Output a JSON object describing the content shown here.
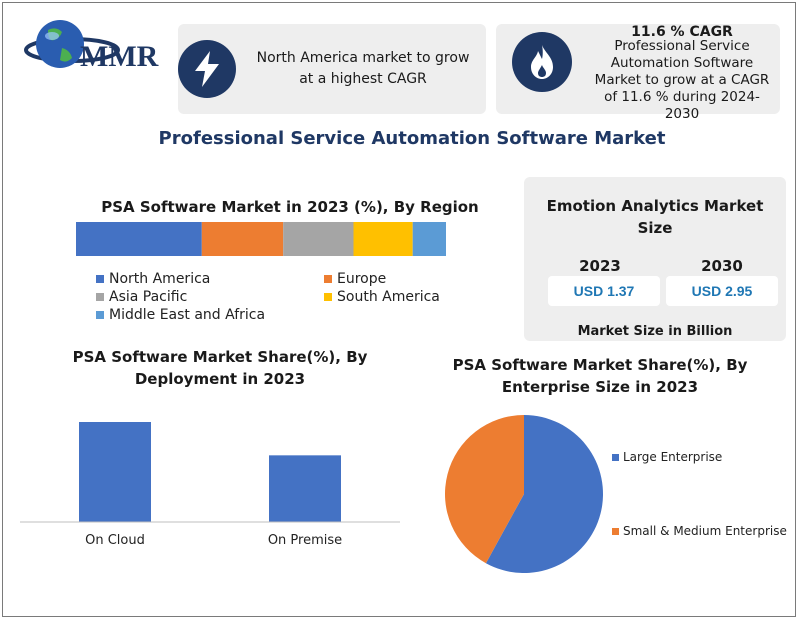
{
  "logo": {
    "text": "MMR"
  },
  "card1": {
    "icon": "lightning-icon",
    "text": "North America market to grow at a highest CAGR"
  },
  "card2": {
    "icon": "flame-icon",
    "headline": "11.6 % CAGR",
    "text": "Professional Service Automation Software Market to grow at a CAGR of 11.6 % during 2024-2030"
  },
  "main_title": "Professional Service Automation Software Market",
  "size_panel": {
    "title": "Emotion Analytics Market Size",
    "col1_year": "2023",
    "col1_value": "USD 1.37",
    "col2_year": "2030",
    "col2_value": "USD 2.95",
    "footer": "Market Size in Billion"
  },
  "colors": {
    "navy": "#1f3864",
    "blue": "#4472c4",
    "orange": "#ed7d31",
    "gray": "#a5a5a5",
    "yellow": "#ffc000",
    "lightblue": "#5b9bd5",
    "title_blue": "#1f3864"
  },
  "chart_data": [
    {
      "type": "bar",
      "orientation": "horizontal-stacked",
      "title": "PSA Software Market in 2023 (%), By Region",
      "series": [
        {
          "name": "North America",
          "values": [
            34
          ],
          "color": "#4472c4"
        },
        {
          "name": "Europe",
          "values": [
            22
          ],
          "color": "#ed7d31"
        },
        {
          "name": "Asia Pacific",
          "values": [
            19
          ],
          "color": "#a5a5a5"
        },
        {
          "name": "South America",
          "values": [
            16
          ],
          "color": "#ffc000"
        },
        {
          "name": "Middle East and Africa",
          "values": [
            9
          ],
          "color": "#5b9bd5"
        }
      ],
      "legend": "bottom"
    },
    {
      "type": "bar",
      "title": "PSA Software Market Share(%), By Deployment in 2023",
      "categories": [
        "On Cloud",
        "On Premise"
      ],
      "values": [
        60,
        40
      ],
      "ylim": [
        0,
        60
      ],
      "grid": false
    },
    {
      "type": "pie",
      "title": "PSA Software Market Share(%), By Enterprise Size in 2023",
      "labels": [
        "Large Enterprise",
        "Small & Medium Enterprise"
      ],
      "values": [
        58,
        42
      ],
      "colors": [
        "#4472c4",
        "#ed7d31"
      ],
      "legend": "right"
    }
  ]
}
